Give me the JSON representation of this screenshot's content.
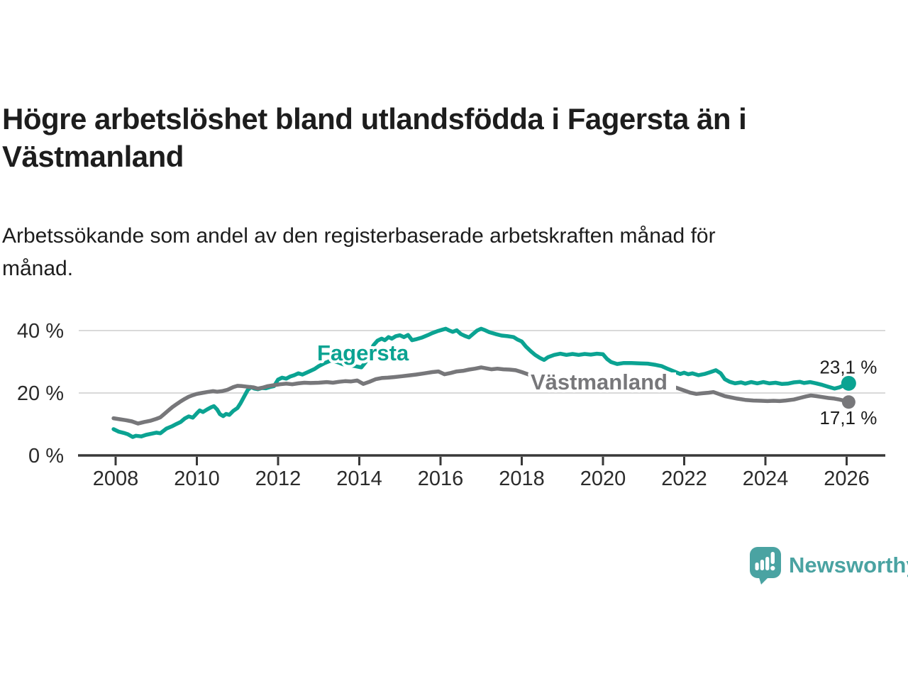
{
  "title": {
    "line1": "Högre arbetslöshet bland utlandsfödda i Fagersta än i",
    "line2": "Västmanland"
  },
  "subtitle": {
    "line1": "Arbetssökande som andel av den registerbaserade arbetskraften månad för",
    "line2": "månad."
  },
  "footer": {
    "logo_text": "Newsworthy",
    "logo_color": "#4aa3a2",
    "logo_icon": "speech-bubble-bar-chart-icon"
  },
  "chart_data": {
    "type": "line",
    "title": "Högre arbetslöshet bland utlandsfödda i Fagersta än i Västmanland",
    "subtitle": "Arbetssökande som andel av den registerbaserade arbetskraften månad för månad.",
    "xlabel": "",
    "ylabel": "",
    "x_ticks": [
      2008,
      2010,
      2012,
      2014,
      2016,
      2018,
      2020,
      2022,
      2024,
      2026
    ],
    "y_ticks": [
      {
        "value": 0,
        "label": "0 %"
      },
      {
        "value": 20,
        "label": "20 %"
      },
      {
        "value": 40,
        "label": "40 %"
      }
    ],
    "xlim": [
      2007.1,
      2026.95
    ],
    "ylim": [
      0,
      45
    ],
    "grid": "horizontal",
    "colors": {
      "grid": "#d9d9d9",
      "axis": "#383838",
      "tick_label": "#2b2b2b",
      "end_label": "#1d1d1d"
    },
    "end_labels": [
      "23,1 %",
      "17,1 %"
    ],
    "series": [
      {
        "name": "Fagersta",
        "color": "#0ba392",
        "last_value_label": "23,1 %",
        "points": [
          [
            2007.95,
            8.4
          ],
          [
            2008.08,
            7.6
          ],
          [
            2008.2,
            7.2
          ],
          [
            2008.3,
            6.8
          ],
          [
            2008.42,
            5.9
          ],
          [
            2008.5,
            6.3
          ],
          [
            2008.63,
            6.1
          ],
          [
            2008.75,
            6.6
          ],
          [
            2008.9,
            7.0
          ],
          [
            2009.0,
            7.3
          ],
          [
            2009.1,
            7.1
          ],
          [
            2009.25,
            8.6
          ],
          [
            2009.4,
            9.4
          ],
          [
            2009.5,
            10.1
          ],
          [
            2009.6,
            10.7
          ],
          [
            2009.7,
            11.8
          ],
          [
            2009.8,
            12.5
          ],
          [
            2009.9,
            12.1
          ],
          [
            2010.0,
            13.5
          ],
          [
            2010.07,
            14.4
          ],
          [
            2010.15,
            13.9
          ],
          [
            2010.25,
            14.7
          ],
          [
            2010.35,
            15.4
          ],
          [
            2010.42,
            15.8
          ],
          [
            2010.5,
            14.7
          ],
          [
            2010.57,
            13.2
          ],
          [
            2010.65,
            12.6
          ],
          [
            2010.72,
            13.3
          ],
          [
            2010.8,
            13.0
          ],
          [
            2010.9,
            14.3
          ],
          [
            2011.0,
            15.2
          ],
          [
            2011.08,
            16.8
          ],
          [
            2011.17,
            19.0
          ],
          [
            2011.25,
            20.9
          ],
          [
            2011.33,
            21.9
          ],
          [
            2011.42,
            21.4
          ],
          [
            2011.5,
            21.2
          ],
          [
            2011.6,
            21.6
          ],
          [
            2011.7,
            21.5
          ],
          [
            2011.8,
            21.9
          ],
          [
            2011.9,
            22.2
          ],
          [
            2012.0,
            24.3
          ],
          [
            2012.1,
            24.9
          ],
          [
            2012.2,
            24.6
          ],
          [
            2012.3,
            25.3
          ],
          [
            2012.4,
            25.7
          ],
          [
            2012.5,
            26.3
          ],
          [
            2012.6,
            25.9
          ],
          [
            2012.75,
            26.8
          ],
          [
            2012.9,
            27.7
          ],
          [
            2013.0,
            28.6
          ],
          [
            2013.15,
            29.6
          ],
          [
            2013.3,
            30.4
          ],
          [
            2013.4,
            30.1
          ],
          [
            2013.5,
            29.7
          ],
          [
            2013.6,
            29.2
          ],
          [
            2013.75,
            28.9
          ],
          [
            2013.9,
            28.6
          ],
          [
            2014.05,
            28.2
          ],
          [
            2014.15,
            29.8
          ],
          [
            2014.25,
            32.5
          ],
          [
            2014.35,
            35.3
          ],
          [
            2014.45,
            36.8
          ],
          [
            2014.55,
            37.4
          ],
          [
            2014.63,
            36.9
          ],
          [
            2014.72,
            37.9
          ],
          [
            2014.8,
            37.4
          ],
          [
            2014.9,
            38.2
          ],
          [
            2015.0,
            38.5
          ],
          [
            2015.1,
            37.9
          ],
          [
            2015.2,
            38.6
          ],
          [
            2015.3,
            36.9
          ],
          [
            2015.42,
            37.3
          ],
          [
            2015.55,
            37.8
          ],
          [
            2015.68,
            38.5
          ],
          [
            2015.8,
            39.2
          ],
          [
            2015.92,
            39.8
          ],
          [
            2016.05,
            40.3
          ],
          [
            2016.13,
            40.6
          ],
          [
            2016.22,
            40.0
          ],
          [
            2016.3,
            39.6
          ],
          [
            2016.4,
            40.1
          ],
          [
            2016.5,
            38.9
          ],
          [
            2016.6,
            38.3
          ],
          [
            2016.7,
            37.8
          ],
          [
            2016.8,
            38.9
          ],
          [
            2016.9,
            40.0
          ],
          [
            2017.0,
            40.6
          ],
          [
            2017.1,
            40.1
          ],
          [
            2017.2,
            39.5
          ],
          [
            2017.35,
            38.9
          ],
          [
            2017.5,
            38.4
          ],
          [
            2017.65,
            38.2
          ],
          [
            2017.8,
            37.9
          ],
          [
            2017.9,
            37.1
          ],
          [
            2018.0,
            36.5
          ],
          [
            2018.1,
            34.9
          ],
          [
            2018.22,
            33.4
          ],
          [
            2018.33,
            32.2
          ],
          [
            2018.45,
            31.2
          ],
          [
            2018.55,
            30.6
          ],
          [
            2018.65,
            31.5
          ],
          [
            2018.8,
            32.2
          ],
          [
            2018.95,
            32.6
          ],
          [
            2019.1,
            32.2
          ],
          [
            2019.25,
            32.5
          ],
          [
            2019.4,
            32.2
          ],
          [
            2019.55,
            32.5
          ],
          [
            2019.7,
            32.3
          ],
          [
            2019.85,
            32.6
          ],
          [
            2020.0,
            32.4
          ],
          [
            2020.1,
            30.9
          ],
          [
            2020.2,
            29.9
          ],
          [
            2020.35,
            29.3
          ],
          [
            2020.5,
            29.6
          ],
          [
            2020.7,
            29.6
          ],
          [
            2020.9,
            29.5
          ],
          [
            2021.1,
            29.4
          ],
          [
            2021.3,
            29.0
          ],
          [
            2021.45,
            28.6
          ],
          [
            2021.6,
            27.7
          ],
          [
            2021.75,
            26.9
          ],
          [
            2021.9,
            26.1
          ],
          [
            2022.0,
            26.5
          ],
          [
            2022.1,
            26.0
          ],
          [
            2022.2,
            26.3
          ],
          [
            2022.35,
            25.7
          ],
          [
            2022.5,
            26.1
          ],
          [
            2022.65,
            26.7
          ],
          [
            2022.78,
            27.3
          ],
          [
            2022.9,
            26.3
          ],
          [
            2023.0,
            24.4
          ],
          [
            2023.12,
            23.6
          ],
          [
            2023.25,
            23.1
          ],
          [
            2023.4,
            23.4
          ],
          [
            2023.5,
            23.0
          ],
          [
            2023.65,
            23.5
          ],
          [
            2023.8,
            23.1
          ],
          [
            2023.95,
            23.5
          ],
          [
            2024.1,
            23.1
          ],
          [
            2024.25,
            23.3
          ],
          [
            2024.4,
            22.9
          ],
          [
            2024.55,
            23.0
          ],
          [
            2024.7,
            23.4
          ],
          [
            2024.85,
            23.6
          ],
          [
            2024.95,
            23.2
          ],
          [
            2025.1,
            23.5
          ],
          [
            2025.25,
            23.1
          ],
          [
            2025.4,
            22.6
          ],
          [
            2025.55,
            22.0
          ],
          [
            2025.7,
            21.4
          ],
          [
            2025.82,
            21.8
          ],
          [
            2025.95,
            22.6
          ],
          [
            2026.05,
            23.1
          ]
        ]
      },
      {
        "name": "Västmanland",
        "color": "#77777a",
        "last_value_label": "17,1 %",
        "points": [
          [
            2007.95,
            11.9
          ],
          [
            2008.1,
            11.6
          ],
          [
            2008.25,
            11.3
          ],
          [
            2008.4,
            10.9
          ],
          [
            2008.55,
            10.2
          ],
          [
            2008.7,
            10.7
          ],
          [
            2008.85,
            11.1
          ],
          [
            2009.0,
            11.7
          ],
          [
            2009.1,
            12.2
          ],
          [
            2009.2,
            13.3
          ],
          [
            2009.3,
            14.4
          ],
          [
            2009.4,
            15.5
          ],
          [
            2009.5,
            16.4
          ],
          [
            2009.6,
            17.3
          ],
          [
            2009.7,
            18.1
          ],
          [
            2009.8,
            18.8
          ],
          [
            2009.9,
            19.3
          ],
          [
            2010.0,
            19.7
          ],
          [
            2010.12,
            20.0
          ],
          [
            2010.25,
            20.3
          ],
          [
            2010.4,
            20.6
          ],
          [
            2010.5,
            20.4
          ],
          [
            2010.62,
            20.6
          ],
          [
            2010.75,
            21.0
          ],
          [
            2010.9,
            21.9
          ],
          [
            2011.0,
            22.3
          ],
          [
            2011.12,
            22.2
          ],
          [
            2011.25,
            22.0
          ],
          [
            2011.4,
            21.8
          ],
          [
            2011.5,
            21.4
          ],
          [
            2011.62,
            21.7
          ],
          [
            2011.75,
            22.2
          ],
          [
            2011.9,
            22.5
          ],
          [
            2012.05,
            22.8
          ],
          [
            2012.2,
            23.0
          ],
          [
            2012.35,
            22.8
          ],
          [
            2012.5,
            23.1
          ],
          [
            2012.65,
            23.3
          ],
          [
            2012.8,
            23.2
          ],
          [
            2013.0,
            23.3
          ],
          [
            2013.2,
            23.5
          ],
          [
            2013.35,
            23.3
          ],
          [
            2013.5,
            23.6
          ],
          [
            2013.65,
            23.8
          ],
          [
            2013.8,
            23.7
          ],
          [
            2013.95,
            24.0
          ],
          [
            2014.1,
            22.9
          ],
          [
            2014.25,
            23.6
          ],
          [
            2014.4,
            24.4
          ],
          [
            2014.55,
            24.8
          ],
          [
            2014.7,
            24.9
          ],
          [
            2014.85,
            25.1
          ],
          [
            2015.0,
            25.3
          ],
          [
            2015.2,
            25.6
          ],
          [
            2015.4,
            25.9
          ],
          [
            2015.6,
            26.3
          ],
          [
            2015.8,
            26.7
          ],
          [
            2015.95,
            26.9
          ],
          [
            2016.1,
            26.0
          ],
          [
            2016.25,
            26.4
          ],
          [
            2016.4,
            26.9
          ],
          [
            2016.55,
            27.1
          ],
          [
            2016.7,
            27.5
          ],
          [
            2016.85,
            27.8
          ],
          [
            2017.0,
            28.2
          ],
          [
            2017.12,
            27.9
          ],
          [
            2017.25,
            27.6
          ],
          [
            2017.4,
            27.8
          ],
          [
            2017.55,
            27.6
          ],
          [
            2017.7,
            27.5
          ],
          [
            2017.85,
            27.3
          ],
          [
            2018.0,
            26.7
          ],
          [
            2018.15,
            26.0
          ],
          [
            2018.3,
            25.4
          ],
          [
            2018.5,
            24.8
          ],
          [
            2018.7,
            24.3
          ],
          [
            2018.9,
            23.9
          ],
          [
            2019.2,
            23.4
          ],
          [
            2019.5,
            23.0
          ],
          [
            2019.8,
            22.8
          ],
          [
            2020.1,
            23.0
          ],
          [
            2020.4,
            22.9
          ],
          [
            2020.7,
            22.7
          ],
          [
            2021.0,
            22.6
          ],
          [
            2021.3,
            22.5
          ],
          [
            2021.55,
            22.4
          ],
          [
            2021.7,
            22.1
          ],
          [
            2021.85,
            21.5
          ],
          [
            2022.0,
            20.8
          ],
          [
            2022.15,
            20.1
          ],
          [
            2022.3,
            19.7
          ],
          [
            2022.45,
            19.9
          ],
          [
            2022.6,
            20.1
          ],
          [
            2022.72,
            20.3
          ],
          [
            2022.85,
            19.7
          ],
          [
            2023.0,
            19.0
          ],
          [
            2023.15,
            18.6
          ],
          [
            2023.3,
            18.2
          ],
          [
            2023.5,
            17.8
          ],
          [
            2023.7,
            17.6
          ],
          [
            2023.9,
            17.5
          ],
          [
            2024.05,
            17.4
          ],
          [
            2024.2,
            17.5
          ],
          [
            2024.35,
            17.4
          ],
          [
            2024.5,
            17.6
          ],
          [
            2024.7,
            17.9
          ],
          [
            2024.85,
            18.4
          ],
          [
            2025.0,
            18.9
          ],
          [
            2025.12,
            19.2
          ],
          [
            2025.25,
            19.0
          ],
          [
            2025.4,
            18.7
          ],
          [
            2025.55,
            18.4
          ],
          [
            2025.7,
            18.2
          ],
          [
            2025.82,
            17.9
          ],
          [
            2025.95,
            17.5
          ],
          [
            2026.05,
            17.1
          ]
        ]
      }
    ]
  }
}
